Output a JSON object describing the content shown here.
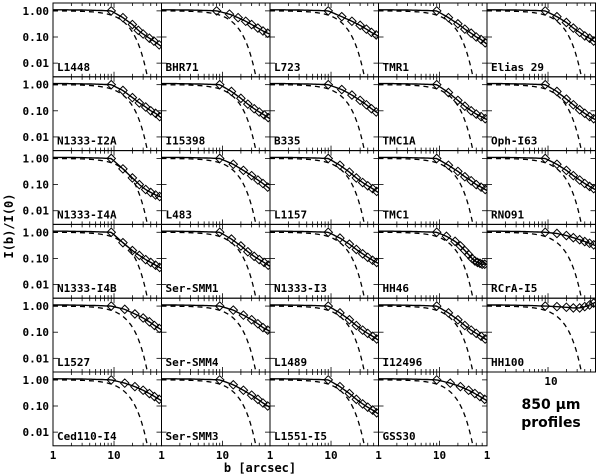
{
  "chart_data": {
    "type": "scatter",
    "description_note": "6x5 grid of 850 micron radial intensity profiles; diamonds are observed data, solid line is model fit, dashed line is beam profile.",
    "xlabel": "b [arcsec]",
    "ylabel": "I(b)/I(0)",
    "x_scale": "log",
    "y_scale": "log",
    "xlim": [
      1,
      60
    ],
    "ylim": [
      0.003,
      2.0
    ],
    "x_tick_labels": [
      "1",
      "10",
      "1"
    ],
    "y_tick_labels": [
      "1.00",
      "0.10",
      "0.01"
    ],
    "extra_x_label": "10",
    "annotation": [
      "850 μm",
      "profiles"
    ],
    "panels": [
      {
        "name": "L1448",
        "points": [
          [
            9,
            1.0
          ],
          [
            14,
            0.55
          ],
          [
            20,
            0.3
          ],
          [
            25,
            0.18
          ],
          [
            30,
            0.13
          ],
          [
            38,
            0.09
          ],
          [
            45,
            0.07
          ],
          [
            55,
            0.05
          ]
        ]
      },
      {
        "name": "BHR71",
        "points": [
          [
            8,
            1.0
          ],
          [
            13,
            0.75
          ],
          [
            18,
            0.55
          ],
          [
            24,
            0.4
          ],
          [
            30,
            0.3
          ],
          [
            38,
            0.22
          ],
          [
            46,
            0.17
          ],
          [
            55,
            0.14
          ]
        ]
      },
      {
        "name": "L723",
        "points": [
          [
            9,
            1.0
          ],
          [
            15,
            0.6
          ],
          [
            22,
            0.4
          ],
          [
            30,
            0.28
          ],
          [
            38,
            0.2
          ],
          [
            46,
            0.15
          ],
          [
            55,
            0.12
          ]
        ]
      },
      {
        "name": "TMR1",
        "points": [
          [
            9,
            1.0
          ],
          [
            14,
            0.55
          ],
          [
            20,
            0.32
          ],
          [
            26,
            0.2
          ],
          [
            33,
            0.14
          ],
          [
            40,
            0.1
          ],
          [
            48,
            0.08
          ],
          [
            56,
            0.06
          ]
        ]
      },
      {
        "name": "Elias 29",
        "points": [
          [
            9,
            1.0
          ],
          [
            14,
            0.6
          ],
          [
            20,
            0.36
          ],
          [
            26,
            0.22
          ],
          [
            33,
            0.15
          ],
          [
            40,
            0.11
          ],
          [
            48,
            0.09
          ],
          [
            56,
            0.07
          ]
        ]
      },
      {
        "name": "N1333-I2A",
        "points": [
          [
            9,
            1.0
          ],
          [
            14,
            0.6
          ],
          [
            20,
            0.32
          ],
          [
            26,
            0.2
          ],
          [
            33,
            0.14
          ],
          [
            40,
            0.1
          ],
          [
            48,
            0.08
          ],
          [
            56,
            0.06
          ]
        ]
      },
      {
        "name": "I15398",
        "points": [
          [
            9,
            1.0
          ],
          [
            14,
            0.55
          ],
          [
            20,
            0.3
          ],
          [
            26,
            0.18
          ],
          [
            33,
            0.12
          ],
          [
            40,
            0.09
          ],
          [
            48,
            0.07
          ],
          [
            56,
            0.055
          ]
        ]
      },
      {
        "name": "B335",
        "points": [
          [
            9,
            1.0
          ],
          [
            15,
            0.65
          ],
          [
            22,
            0.4
          ],
          [
            30,
            0.25
          ],
          [
            38,
            0.17
          ],
          [
            46,
            0.12
          ],
          [
            55,
            0.09
          ]
        ]
      },
      {
        "name": "TMC1A",
        "points": [
          [
            9,
            1.0
          ],
          [
            14,
            0.5
          ],
          [
            20,
            0.25
          ],
          [
            26,
            0.15
          ],
          [
            33,
            0.1
          ],
          [
            40,
            0.075
          ],
          [
            48,
            0.06
          ],
          [
            56,
            0.05
          ]
        ]
      },
      {
        "name": "Oph-I63",
        "points": [
          [
            9,
            1.0
          ],
          [
            14,
            0.55
          ],
          [
            20,
            0.28
          ],
          [
            26,
            0.17
          ],
          [
            33,
            0.11
          ],
          [
            40,
            0.08
          ],
          [
            48,
            0.06
          ],
          [
            56,
            0.05
          ]
        ]
      },
      {
        "name": "N1333-I4A",
        "points": [
          [
            9,
            1.0
          ],
          [
            14,
            0.4
          ],
          [
            20,
            0.18
          ],
          [
            26,
            0.1
          ],
          [
            33,
            0.065
          ],
          [
            40,
            0.05
          ],
          [
            48,
            0.04
          ],
          [
            56,
            0.035
          ]
        ]
      },
      {
        "name": "L483",
        "points": [
          [
            9,
            1.0
          ],
          [
            15,
            0.6
          ],
          [
            22,
            0.35
          ],
          [
            30,
            0.22
          ],
          [
            38,
            0.15
          ],
          [
            46,
            0.11
          ],
          [
            55,
            0.08
          ]
        ]
      },
      {
        "name": "L1157",
        "points": [
          [
            9,
            1.0
          ],
          [
            14,
            0.55
          ],
          [
            20,
            0.3
          ],
          [
            26,
            0.18
          ],
          [
            33,
            0.12
          ],
          [
            40,
            0.09
          ],
          [
            48,
            0.07
          ],
          [
            56,
            0.055
          ]
        ]
      },
      {
        "name": "TMC1",
        "points": [
          [
            9,
            1.0
          ],
          [
            14,
            0.55
          ],
          [
            20,
            0.32
          ],
          [
            26,
            0.2
          ],
          [
            33,
            0.14
          ],
          [
            40,
            0.1
          ],
          [
            48,
            0.08
          ],
          [
            56,
            0.065
          ]
        ]
      },
      {
        "name": "RNO91",
        "points": [
          [
            9,
            1.0
          ],
          [
            14,
            0.6
          ],
          [
            20,
            0.35
          ],
          [
            26,
            0.22
          ],
          [
            33,
            0.15
          ],
          [
            40,
            0.11
          ],
          [
            48,
            0.085
          ],
          [
            56,
            0.07
          ]
        ]
      },
      {
        "name": "N1333-I4B",
        "points": [
          [
            9,
            1.0
          ],
          [
            14,
            0.4
          ],
          [
            20,
            0.2
          ],
          [
            26,
            0.13
          ],
          [
            33,
            0.09
          ],
          [
            40,
            0.07
          ],
          [
            48,
            0.055
          ],
          [
            56,
            0.045
          ]
        ]
      },
      {
        "name": "Ser-SMM1",
        "points": [
          [
            9,
            1.0
          ],
          [
            14,
            0.55
          ],
          [
            20,
            0.3
          ],
          [
            26,
            0.18
          ],
          [
            33,
            0.12
          ],
          [
            40,
            0.09
          ],
          [
            48,
            0.07
          ],
          [
            56,
            0.055
          ]
        ]
      },
      {
        "name": "N1333-I3",
        "points": [
          [
            9,
            1.0
          ],
          [
            14,
            0.6
          ],
          [
            20,
            0.35
          ],
          [
            26,
            0.22
          ],
          [
            33,
            0.15
          ],
          [
            40,
            0.11
          ],
          [
            48,
            0.085
          ],
          [
            56,
            0.07
          ]
        ]
      },
      {
        "name": "HH46",
        "points": [
          [
            9,
            1.0
          ],
          [
            13,
            0.7
          ],
          [
            18,
            0.45
          ],
          [
            22,
            0.3
          ],
          [
            26,
            0.2
          ],
          [
            30,
            0.14
          ],
          [
            34,
            0.1
          ],
          [
            38,
            0.08
          ],
          [
            42,
            0.07
          ],
          [
            46,
            0.065
          ],
          [
            50,
            0.06
          ],
          [
            55,
            0.06
          ]
        ]
      },
      {
        "name": "RCrA-I5",
        "points": [
          [
            9,
            1.0
          ],
          [
            14,
            0.9
          ],
          [
            20,
            0.75
          ],
          [
            26,
            0.62
          ],
          [
            33,
            0.52
          ],
          [
            40,
            0.44
          ],
          [
            48,
            0.38
          ],
          [
            56,
            0.33
          ]
        ]
      },
      {
        "name": "L1527",
        "points": [
          [
            9,
            1.0
          ],
          [
            15,
            0.75
          ],
          [
            22,
            0.5
          ],
          [
            30,
            0.35
          ],
          [
            38,
            0.25
          ],
          [
            46,
            0.18
          ],
          [
            55,
            0.14
          ]
        ]
      },
      {
        "name": "Ser-SMM4",
        "points": [
          [
            9,
            1.0
          ],
          [
            15,
            0.7
          ],
          [
            22,
            0.45
          ],
          [
            30,
            0.3
          ],
          [
            38,
            0.21
          ],
          [
            46,
            0.15
          ],
          [
            55,
            0.12
          ]
        ]
      },
      {
        "name": "L1489",
        "points": [
          [
            9,
            1.0
          ],
          [
            14,
            0.55
          ],
          [
            20,
            0.3
          ],
          [
            26,
            0.18
          ],
          [
            33,
            0.12
          ],
          [
            40,
            0.09
          ],
          [
            48,
            0.07
          ],
          [
            56,
            0.055
          ]
        ]
      },
      {
        "name": "I12496",
        "points": [
          [
            9,
            1.0
          ],
          [
            14,
            0.55
          ],
          [
            20,
            0.3
          ],
          [
            26,
            0.18
          ],
          [
            33,
            0.12
          ],
          [
            40,
            0.09
          ],
          [
            48,
            0.07
          ],
          [
            56,
            0.055
          ]
        ]
      },
      {
        "name": "HH100",
        "points": [
          [
            9,
            1.0
          ],
          [
            14,
            0.95
          ],
          [
            20,
            0.9
          ],
          [
            26,
            0.85
          ],
          [
            33,
            0.85
          ],
          [
            40,
            0.95
          ],
          [
            48,
            1.1
          ],
          [
            56,
            1.3
          ]
        ]
      },
      {
        "name": "Ced110-I4",
        "points": [
          [
            9,
            1.0
          ],
          [
            15,
            0.75
          ],
          [
            22,
            0.55
          ],
          [
            30,
            0.4
          ],
          [
            38,
            0.3
          ],
          [
            46,
            0.23
          ],
          [
            55,
            0.18
          ]
        ]
      },
      {
        "name": "Ser-SMM3",
        "points": [
          [
            9,
            1.0
          ],
          [
            15,
            0.65
          ],
          [
            22,
            0.4
          ],
          [
            30,
            0.26
          ],
          [
            38,
            0.18
          ],
          [
            46,
            0.13
          ],
          [
            55,
            0.1
          ]
        ]
      },
      {
        "name": "L1551-I5",
        "points": [
          [
            9,
            1.0
          ],
          [
            14,
            0.55
          ],
          [
            20,
            0.3
          ],
          [
            26,
            0.18
          ],
          [
            33,
            0.12
          ],
          [
            40,
            0.09
          ],
          [
            48,
            0.07
          ],
          [
            56,
            0.055
          ]
        ]
      },
      {
        "name": "GSS30",
        "points": [
          [
            9,
            1.0
          ],
          [
            15,
            0.75
          ],
          [
            22,
            0.55
          ],
          [
            30,
            0.4
          ],
          [
            38,
            0.3
          ],
          [
            46,
            0.23
          ],
          [
            55,
            0.18
          ]
        ]
      }
    ]
  }
}
